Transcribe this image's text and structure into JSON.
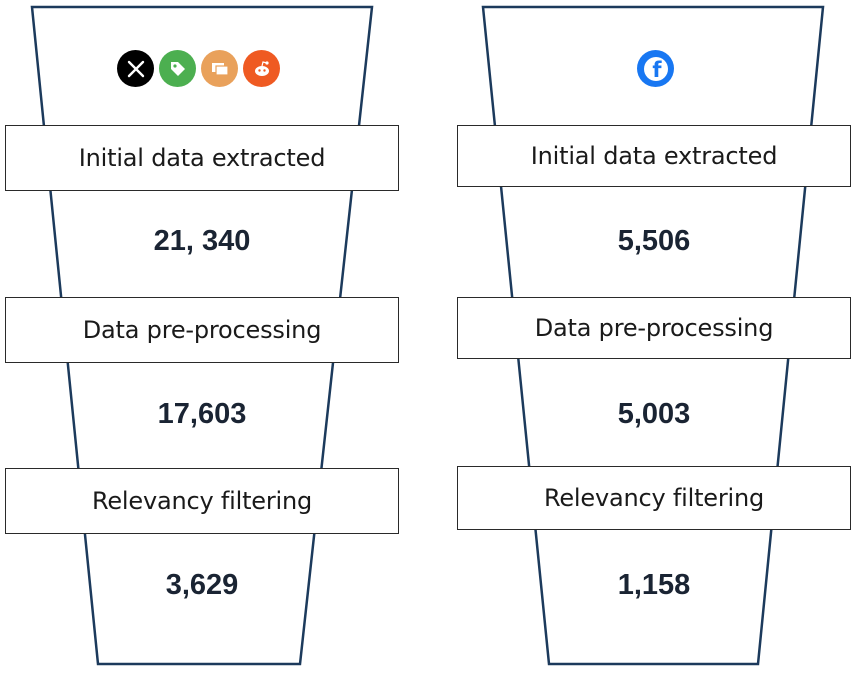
{
  "funnels": [
    {
      "sources": [
        {
          "icon": "x-twitter-icon",
          "color": "#000000"
        },
        {
          "icon": "tag-icon",
          "color": "#4caf50"
        },
        {
          "icon": "chat-icon",
          "color": "#e9a15b"
        },
        {
          "icon": "reddit-icon",
          "color": "#ef5a22"
        }
      ],
      "stages": [
        {
          "label": "Initial data extracted",
          "count": "21, 340"
        },
        {
          "label": "Data pre-processing",
          "count": "17,603"
        },
        {
          "label": "Relevancy filtering",
          "count": "3,629"
        }
      ]
    },
    {
      "sources": [
        {
          "icon": "facebook-icon",
          "color": "#1877f2"
        }
      ],
      "stages": [
        {
          "label": "Initial data extracted",
          "count": "5,506"
        },
        {
          "label": "Data pre-processing",
          "count": "5,003"
        },
        {
          "label": "Relevancy filtering",
          "count": "1,158"
        }
      ]
    }
  ]
}
